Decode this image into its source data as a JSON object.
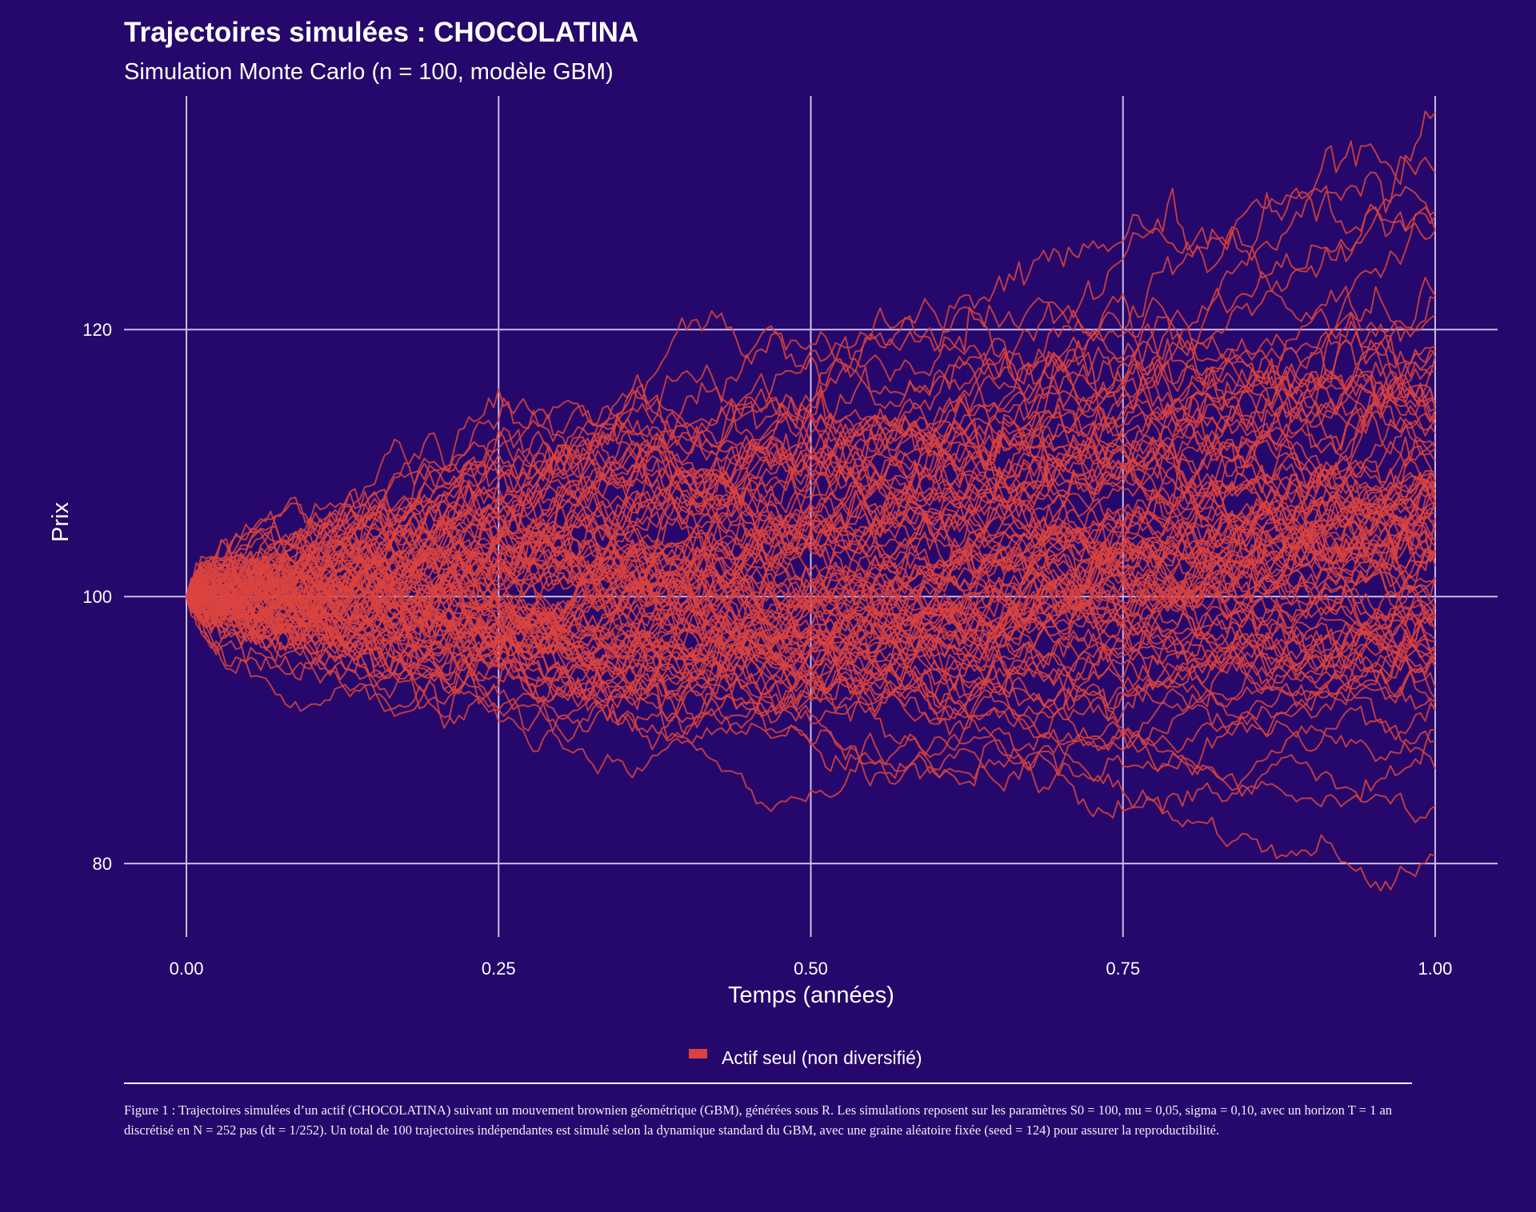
{
  "colors": {
    "background": "#26076b",
    "trajectory": "#d9433f",
    "grid": "#c9bfe6",
    "text": "#ffffff"
  },
  "chart_data": {
    "type": "line",
    "title": "Trajectoires simulées : CHOCOLATINA",
    "subtitle": "Simulation Monte Carlo (n = 100, modèle GBM)",
    "xlabel": "Temps (années)",
    "ylabel": "Prix",
    "xlim": [
      -0.05,
      1.05
    ],
    "ylim": [
      74.5,
      137.5
    ],
    "x_ticks": [
      0.0,
      0.25,
      0.5,
      0.75,
      1.0
    ],
    "x_tick_labels": [
      "0.00",
      "0.25",
      "0.50",
      "0.75",
      "1.00"
    ],
    "y_ticks": [
      80,
      100,
      120
    ],
    "y_tick_labels": [
      "80",
      "100",
      "120"
    ],
    "grid": true,
    "legend": {
      "position": "bottom",
      "entries": [
        {
          "label": "Actif seul (non diversifié)",
          "color": "#d9433f"
        }
      ]
    },
    "simulation": {
      "model": "GBM",
      "S0": 100,
      "mu": 0.05,
      "sigma": 0.1,
      "T": 1,
      "N": 252,
      "n_paths": 100,
      "seed": 124
    }
  },
  "caption": {
    "text": "Figure 1 : Trajectoires simulées d’un actif (CHOCOLATINA) suivant un mouvement brownien géométrique (GBM), générées sous R. Les simulations reposent sur les paramètres S0 = 100, mu = 0,05, sigma = 0,10, avec un horizon T = 1 an discrétisé en N = 252 pas (dt = 1/252). Un total de 100 trajectoires indépendantes est simulé selon la dynamique standard du GBM, avec une graine aléatoire fixée (seed = 124) pour assurer la reproductibilité."
  }
}
